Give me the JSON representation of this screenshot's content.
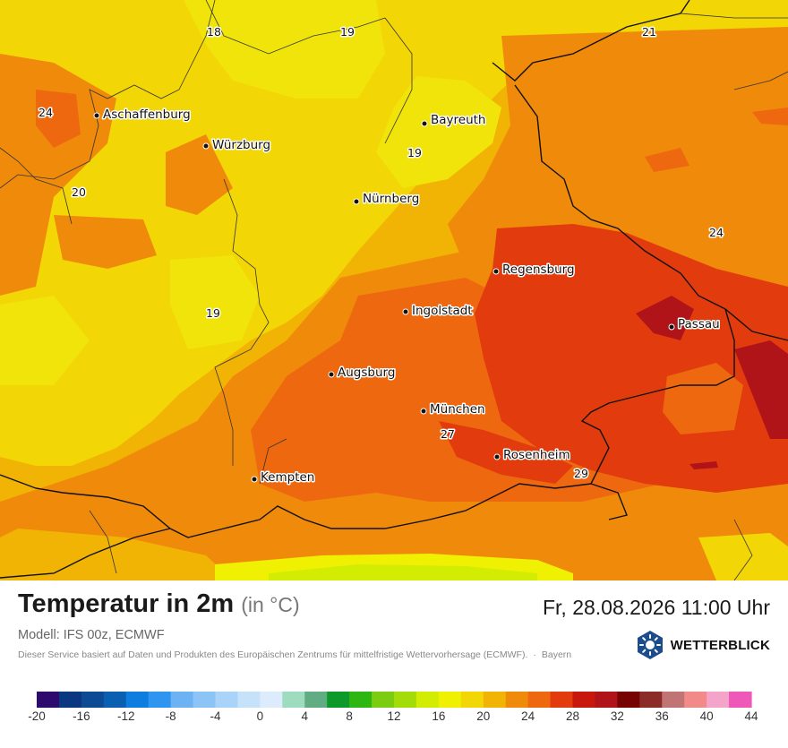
{
  "map": {
    "cities": [
      {
        "name": "Aschaffenburg"
      },
      {
        "name": "Würzburg"
      },
      {
        "name": "Bayreuth"
      },
      {
        "name": "Nürnberg"
      },
      {
        "name": "Regensburg"
      },
      {
        "name": "Ingolstadt"
      },
      {
        "name": "Passau"
      },
      {
        "name": "Augsburg"
      },
      {
        "name": "München"
      },
      {
        "name": "Rosenheim"
      },
      {
        "name": "Kempten"
      }
    ],
    "isotherm_labels": [
      "18",
      "19",
      "21",
      "24",
      "20",
      "19",
      "24",
      "19",
      "27",
      "29"
    ]
  },
  "info": {
    "title": "Temperatur in 2m",
    "unit": "(in °C)",
    "datetime": "Fr, 28.08.2026 11:00 Uhr",
    "model": "Modell: IFS 00z, ECMWF",
    "disclaimer": "Dieser Service basiert auf Daten und Produkten des Europäischen Zentrums für mittelfristige Wettervorhersage (ECMWF).",
    "separator": "·",
    "region": "Bayern",
    "brand": "WETTERBLICK",
    "brand_icon": "sun-icon",
    "brand_color": "#1c4c8c"
  },
  "scale": {
    "labels": [
      "-20",
      "-16",
      "-12",
      "-8",
      "-4",
      "0",
      "4",
      "8",
      "12",
      "16",
      "20",
      "24",
      "28",
      "32",
      "36",
      "40",
      "44"
    ],
    "colors": [
      "#2c0a6e",
      "#0b3680",
      "#0c4a93",
      "#0b5fb0",
      "#0d7de0",
      "#2f95f0",
      "#6db3f4",
      "#8cc4f6",
      "#a9d3f8",
      "#c6e2fa",
      "#dcecfc",
      "#9edcc0",
      "#62ac84",
      "#0e9a2a",
      "#2eb612",
      "#7ccc12",
      "#a4dc0a",
      "#d2ec02",
      "#f0f002",
      "#f2d606",
      "#f2b404",
      "#f08a0a",
      "#ee6810",
      "#e23c0e",
      "#c8180e",
      "#b01418",
      "#760402",
      "#8c2c28",
      "#c07474",
      "#f28a8a",
      "#f4a4c8",
      "#ee58b8"
    ]
  }
}
